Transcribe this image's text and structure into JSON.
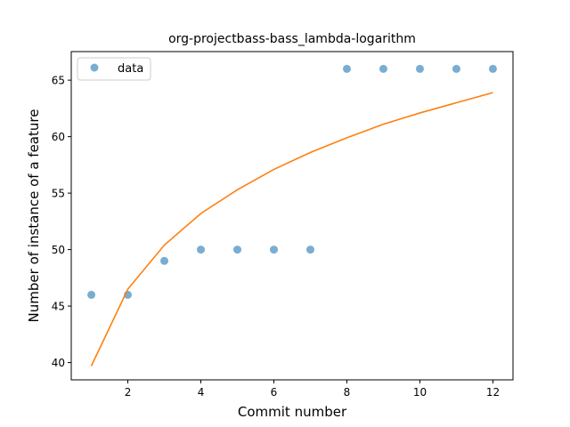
{
  "chart_data": {
    "type": "scatter",
    "title": "org-projectbass-bass_lambda-logarithm",
    "xlabel": "Commit number",
    "ylabel": "Number of instance of a feature",
    "xlim": [
      0.45,
      12.55
    ],
    "ylim": [
      38.47,
      67.53
    ],
    "xticks": [
      2,
      4,
      6,
      8,
      10,
      12
    ],
    "yticks": [
      40,
      45,
      50,
      55,
      60,
      65
    ],
    "grid": false,
    "legend_position": "top-left",
    "series": [
      {
        "name": "data",
        "kind": "scatter",
        "color": "#1f77b4",
        "x": [
          1,
          2,
          3,
          4,
          5,
          6,
          7,
          8,
          9,
          10,
          11,
          12
        ],
        "y": [
          46,
          46,
          49,
          50,
          50,
          50,
          50,
          66,
          66,
          66,
          66,
          66
        ]
      },
      {
        "kind": "line",
        "color": "#ff7f0e",
        "x": [
          1,
          2,
          3,
          4,
          5,
          6,
          7,
          8,
          9,
          10,
          11,
          12
        ],
        "y": [
          39.7,
          46.5,
          50.4,
          53.2,
          55.3,
          57.1,
          58.6,
          59.9,
          61.1,
          62.1,
          63.0,
          63.9
        ]
      }
    ]
  }
}
